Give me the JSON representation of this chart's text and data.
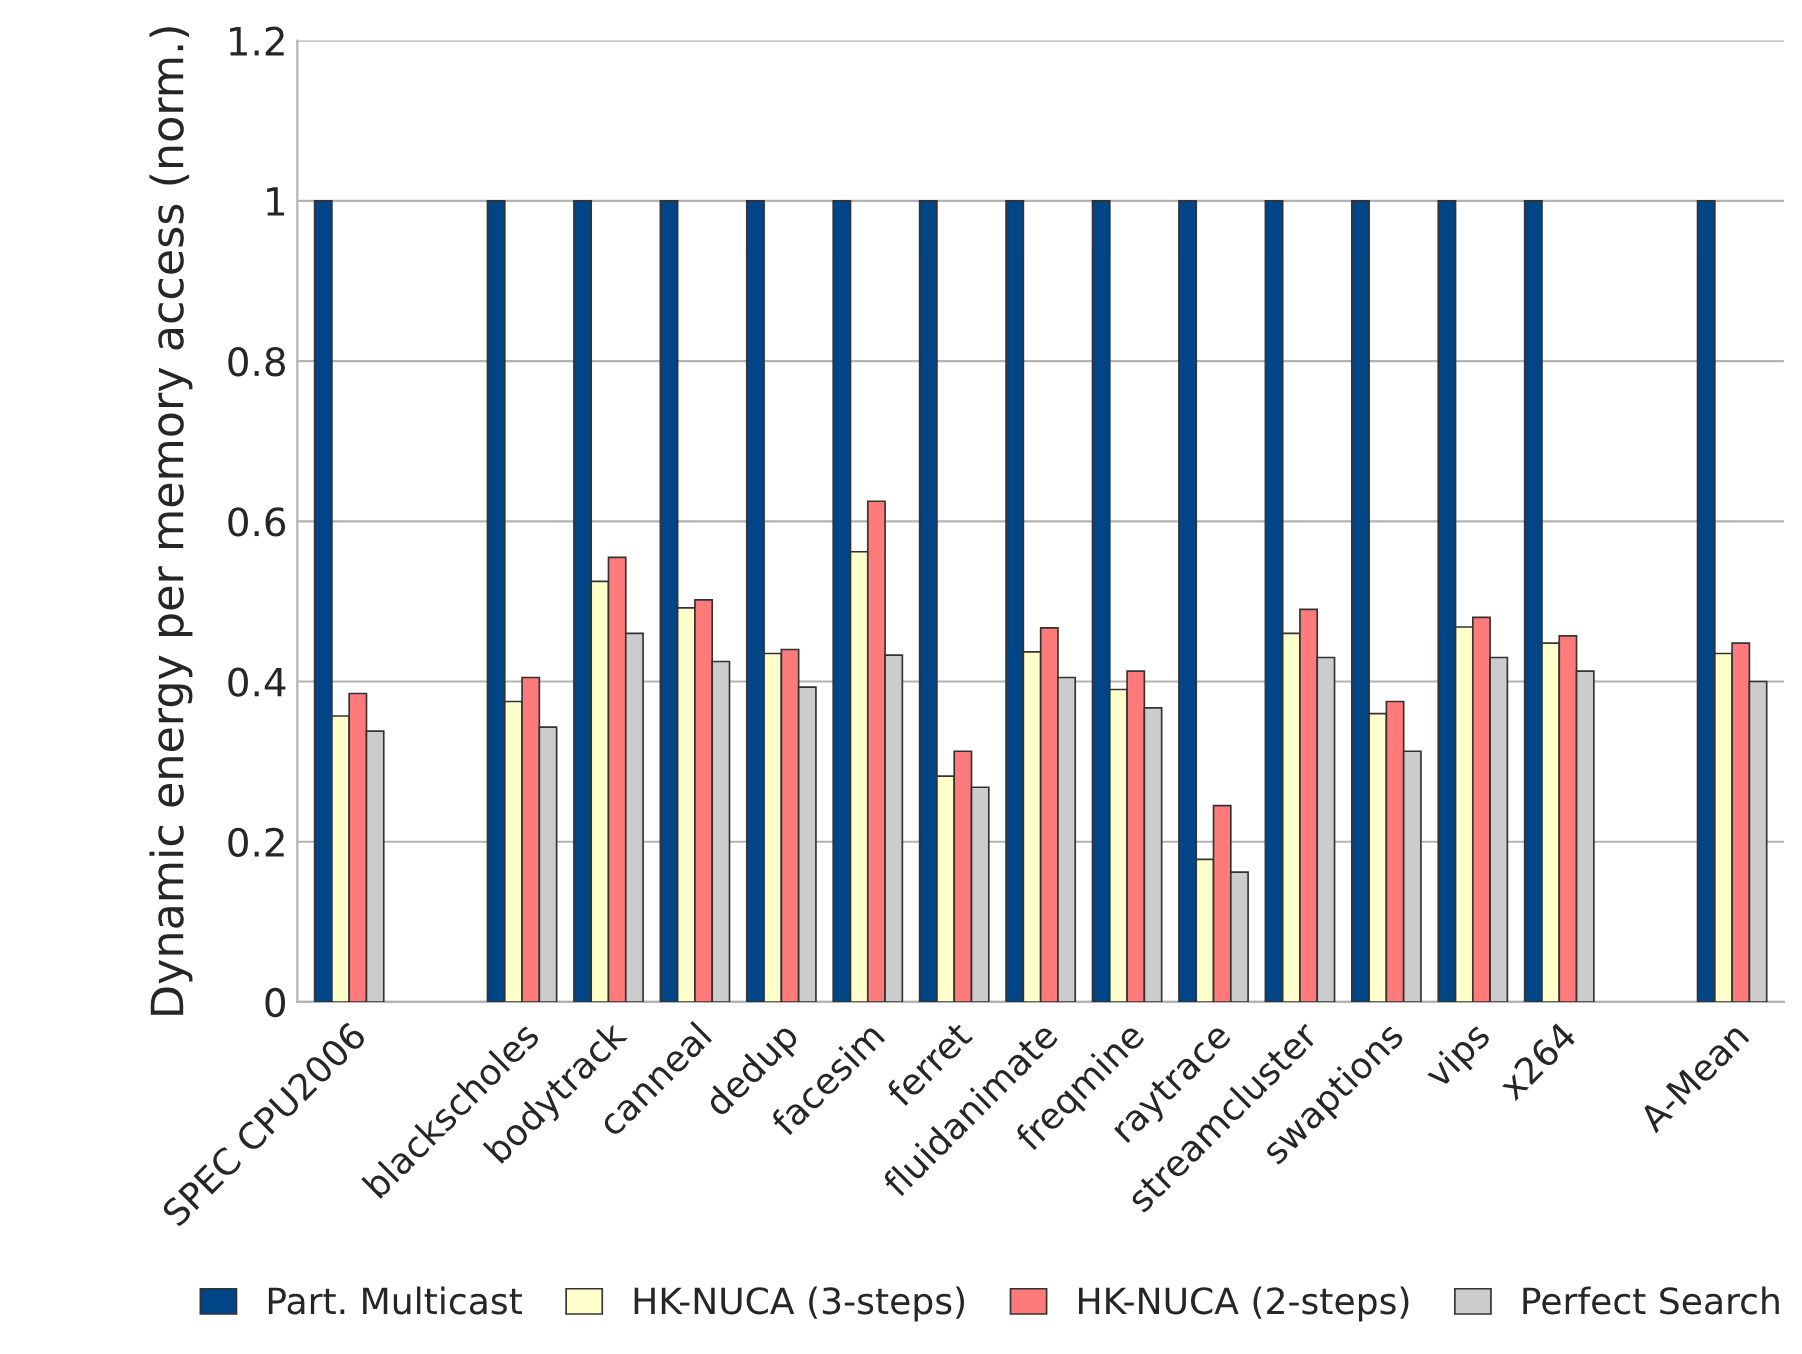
{
  "chart_data": {
    "type": "bar",
    "ylabel": "Dynamic energy per memory access (norm.)",
    "categories": [
      "SPEC CPU2006",
      null,
      "blackscholes",
      "bodytrack",
      "canneal",
      "dedup",
      "facesim",
      "ferret",
      "fluidanimate",
      "freqmine",
      "raytrace",
      "streamcluster",
      "swaptions",
      "vips",
      "x264",
      null,
      "A-Mean"
    ],
    "series": [
      {
        "name": "Part. Multicast",
        "color": "#004586",
        "values": [
          1,
          null,
          1,
          1,
          1,
          1,
          1,
          1,
          1,
          1,
          1,
          1,
          1,
          1,
          1,
          null,
          1
        ]
      },
      {
        "name": "HK-NUCA (3-steps)",
        "color": "#ffffcc",
        "values": [
          0.357,
          null,
          0.375,
          0.525,
          0.492,
          0.435,
          0.562,
          0.282,
          0.437,
          0.39,
          0.178,
          0.46,
          0.36,
          0.468,
          0.448,
          null,
          0.435
        ]
      },
      {
        "name": "HK-NUCA (2-steps)",
        "color": "#ff7b7b",
        "values": [
          0.385,
          null,
          0.405,
          0.555,
          0.502,
          0.44,
          0.625,
          0.313,
          0.467,
          0.413,
          0.245,
          0.49,
          0.375,
          0.48,
          0.457,
          null,
          0.448
        ]
      },
      {
        "name": "Perfect Search",
        "color": "#cccccc",
        "values": [
          0.338,
          null,
          0.343,
          0.46,
          0.425,
          0.393,
          0.433,
          0.268,
          0.405,
          0.367,
          0.162,
          0.43,
          0.313,
          0.43,
          0.413,
          null,
          0.4
        ]
      }
    ],
    "ylim": [
      0,
      1.2
    ],
    "yticks": [
      0,
      0.2,
      0.4,
      0.6,
      0.8,
      1,
      1.2
    ],
    "grid": "y",
    "legend": "bottom"
  }
}
